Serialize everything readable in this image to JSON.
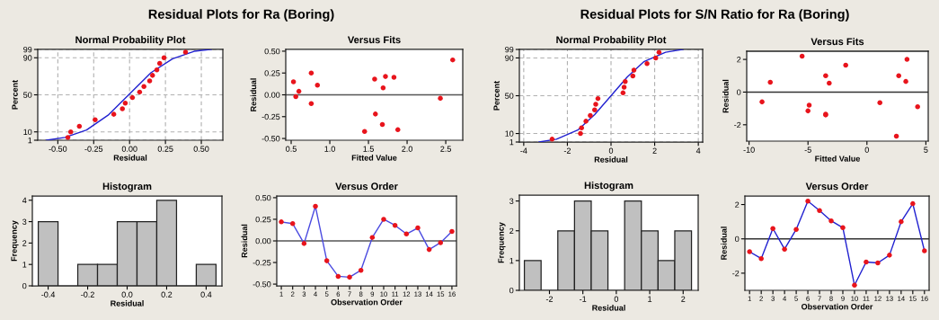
{
  "chart_data": [
    {
      "type": "scatter",
      "title": "Normal Probability Plot",
      "xlabel": "Residual",
      "ylabel": "Percent",
      "annotations": [
        "Residual Plots for Ra (Boring)"
      ],
      "grid": true,
      "marker": "circle",
      "xlim": [
        -0.64,
        0.65
      ],
      "xticks": [
        {
          "value": -0.5,
          "label": "-0.50"
        },
        {
          "value": -0.25,
          "label": "-0.25"
        },
        {
          "value": 0,
          "label": "0.00"
        },
        {
          "value": 0.25,
          "label": "0.25"
        },
        {
          "value": 0.5,
          "label": "0.50"
        }
      ],
      "ylim": [
        1,
        99
      ],
      "yticks": [
        1,
        10,
        50,
        90,
        99
      ],
      "series": [
        {
          "type": "scatter",
          "color": "#e8141c",
          "x": [
            -0.43,
            -0.41,
            -0.35,
            -0.24,
            -0.11,
            -0.05,
            -0.03,
            0.02,
            0.07,
            0.1,
            0.14,
            0.16,
            0.19,
            0.21,
            0.24,
            0.39
          ],
          "values": [
            4,
            10,
            16,
            23,
            29,
            35,
            41,
            47,
            53,
            59,
            65,
            71,
            77,
            84,
            90,
            96
          ]
        },
        {
          "type": "line",
          "color": "#2020d0",
          "marker": "none",
          "x": [
            -0.58,
            -0.45,
            -0.3,
            -0.15,
            0,
            0.15,
            0.3,
            0.45,
            0.57
          ],
          "values": [
            1,
            4,
            12,
            28,
            51,
            74,
            89,
            97,
            99
          ]
        }
      ]
    },
    {
      "type": "scatter",
      "title": "Versus Fits",
      "xlabel": "Fitted Value",
      "ylabel": "Residual",
      "marker": "circle",
      "xlim": [
        0.43,
        2.72
      ],
      "xticks": [
        {
          "value": 0.5,
          "label": "0.5"
        },
        {
          "value": 1.0,
          "label": "1.0"
        },
        {
          "value": 1.5,
          "label": "1.5"
        },
        {
          "value": 2.0,
          "label": "2.0"
        },
        {
          "value": 2.5,
          "label": "2.5"
        }
      ],
      "ylim": [
        -0.52,
        0.52
      ],
      "yticks": [
        {
          "value": -0.5,
          "label": "-0.50"
        },
        {
          "value": -0.25,
          "label": "-0.25"
        },
        {
          "value": 0,
          "label": "0.00"
        },
        {
          "value": 0.25,
          "label": "0.25"
        },
        {
          "value": 0.5,
          "label": "0.50"
        }
      ],
      "ref_lines": [
        {
          "axis": "y",
          "value": 0,
          "color": "#555555"
        }
      ],
      "series": [
        {
          "type": "scatter",
          "color": "#e8141c",
          "x": [
            0.53,
            0.56,
            0.6,
            0.76,
            0.76,
            0.84,
            1.45,
            1.58,
            1.59,
            1.68,
            1.69,
            1.72,
            1.83,
            1.88,
            2.43,
            2.59
          ],
          "values": [
            0.15,
            -0.02,
            0.04,
            0.25,
            -0.1,
            0.11,
            -0.42,
            0.18,
            -0.22,
            -0.34,
            0.08,
            0.21,
            0.2,
            -0.4,
            -0.04,
            0.4
          ]
        }
      ]
    },
    {
      "type": "histogram",
      "title": "Histogram",
      "xlabel": "Residual",
      "ylabel": "Frequency",
      "color": "#c0c0c0",
      "bins": [
        -0.45,
        -0.35,
        -0.25,
        -0.15,
        -0.05,
        0.05,
        0.15,
        0.25,
        0.35,
        0.45
      ],
      "values": [
        3,
        0,
        1,
        1,
        3,
        3,
        4,
        0,
        1
      ],
      "xlim": [
        -0.48,
        0.48
      ],
      "xticks": [
        {
          "value": -0.4,
          "label": "-0.4"
        },
        {
          "value": -0.2,
          "label": "-0.2"
        },
        {
          "value": 0,
          "label": "0.0"
        },
        {
          "value": 0.2,
          "label": "0.2"
        },
        {
          "value": 0.4,
          "label": "0.4"
        }
      ],
      "ylim": [
        0,
        4.2
      ],
      "yticks": [
        0,
        1,
        2,
        3,
        4
      ]
    },
    {
      "type": "line",
      "title": "Versus Order",
      "xlabel": "Observation Order",
      "ylabel": "Residual",
      "categories": [
        "1",
        "2",
        "3",
        "4",
        "5",
        "6",
        "7",
        "8",
        "9",
        "10",
        "11",
        "12",
        "13",
        "14",
        "15",
        "16"
      ],
      "ylim": [
        -0.52,
        0.52
      ],
      "yticks": [
        {
          "value": -0.5,
          "label": "-0.50"
        },
        {
          "value": -0.25,
          "label": "-0.25"
        },
        {
          "value": 0,
          "label": "0.00"
        },
        {
          "value": 0.25,
          "label": "0.25"
        },
        {
          "value": 0.5,
          "label": "0.50"
        }
      ],
      "ref_lines": [
        {
          "axis": "y",
          "value": 0,
          "color": "#555555"
        }
      ],
      "series": [
        {
          "type": "line",
          "color": "#4a4ae0",
          "marker": "none",
          "values": [
            0.22,
            0.2,
            -0.03,
            0.4,
            -0.23,
            -0.41,
            -0.42,
            -0.34,
            0.04,
            0.25,
            0.18,
            0.08,
            0.15,
            -0.1,
            -0.02,
            0.11
          ]
        },
        {
          "type": "scatter",
          "color": "#e8141c",
          "marker": "circle",
          "values": [
            0.22,
            0.2,
            -0.03,
            0.4,
            -0.23,
            -0.41,
            -0.42,
            -0.34,
            0.04,
            0.25,
            0.18,
            0.08,
            0.15,
            -0.1,
            -0.02,
            0.11
          ]
        }
      ]
    },
    {
      "type": "scatter",
      "title": "Normal Probability Plot",
      "xlabel": "Residual",
      "ylabel": "Percent",
      "annotations": [
        "Residual Plots for S/N Ratio for Ra (Boring)"
      ],
      "grid": true,
      "marker": "circle",
      "xlim": [
        -4.2,
        4.2
      ],
      "xticks": [
        -4,
        -2,
        0,
        2,
        4
      ],
      "ylim": [
        1,
        99
      ],
      "yticks": [
        1,
        10,
        50,
        90,
        99
      ],
      "series": [
        {
          "type": "scatter",
          "color": "#e8141c",
          "x": [
            -2.7,
            -1.4,
            -1.35,
            -1.15,
            -0.95,
            -0.75,
            -0.7,
            -0.6,
            0.55,
            0.6,
            0.65,
            1.0,
            1.05,
            1.65,
            2.05,
            2.2
          ],
          "values": [
            4,
            10,
            16,
            23,
            29,
            35,
            41,
            47,
            53,
            59,
            65,
            71,
            77,
            84,
            90,
            96
          ]
        },
        {
          "type": "line",
          "color": "#2020d0",
          "marker": "none",
          "x": [
            -3.3,
            -2.5,
            -1.5,
            -0.75,
            0,
            0.75,
            1.5,
            2.5,
            3.3
          ],
          "values": [
            1,
            4,
            14,
            30,
            50,
            70,
            86,
            96,
            99
          ]
        }
      ]
    },
    {
      "type": "scatter",
      "title": "Versus Fits",
      "xlabel": "Fitted Value",
      "ylabel": "Residual",
      "marker": "circle",
      "xlim": [
        -10.2,
        5.2
      ],
      "xticks": [
        -10,
        -5,
        0,
        5
      ],
      "ylim": [
        -3.0,
        2.5
      ],
      "yticks": [
        -2,
        0,
        2
      ],
      "ref_lines": [
        {
          "axis": "y",
          "value": 0,
          "color": "#333333"
        }
      ],
      "series": [
        {
          "type": "scatter",
          "color": "#e8141c",
          "x": [
            -8.9,
            -8.2,
            -5.5,
            -5.0,
            -4.9,
            -3.5,
            -3.5,
            -3.5,
            -3.2,
            -1.8,
            1.1,
            2.5,
            2.7,
            3.3,
            3.4,
            4.3
          ],
          "values": [
            -0.6,
            0.6,
            2.2,
            -1.15,
            -0.8,
            -1.4,
            -1.35,
            1.0,
            0.55,
            1.65,
            -0.65,
            -2.7,
            1.0,
            0.65,
            2.0,
            -0.9
          ]
        }
      ]
    },
    {
      "type": "histogram",
      "title": "Histogram",
      "xlabel": "Residual",
      "ylabel": "Frequency",
      "color": "#c0c0c0",
      "bins": [
        -2.75,
        -2.25,
        -1.75,
        -1.25,
        -0.75,
        -0.25,
        0.25,
        0.75,
        1.25,
        1.75,
        2.25
      ],
      "values": [
        1,
        0,
        2,
        3,
        2,
        0,
        3,
        2,
        1,
        2
      ],
      "xlim": [
        -2.9,
        2.45
      ],
      "xticks": [
        -2,
        -1,
        0,
        1,
        2
      ],
      "ylim": [
        0,
        3.2
      ],
      "yticks": [
        0,
        1,
        2,
        3
      ]
    },
    {
      "type": "line",
      "title": "Versus Order",
      "xlabel": "Observation Order",
      "ylabel": "Residual",
      "categories": [
        "1",
        "2",
        "3",
        "4",
        "5",
        "6",
        "7",
        "8",
        "9",
        "10",
        "11",
        "12",
        "13",
        "14",
        "15",
        "16"
      ],
      "ylim": [
        -3.0,
        2.5
      ],
      "yticks": [
        -2,
        0,
        2
      ],
      "ref_lines": [
        {
          "axis": "y",
          "value": 0,
          "color": "#333333"
        }
      ],
      "series": [
        {
          "type": "line",
          "color": "#2020d0",
          "marker": "none",
          "values": [
            -0.75,
            -1.15,
            0.6,
            -0.6,
            0.55,
            2.2,
            1.65,
            1.05,
            0.65,
            -2.7,
            -1.35,
            -1.4,
            -0.95,
            1.0,
            2.05,
            -0.7
          ]
        },
        {
          "type": "scatter",
          "color": "#e8141c",
          "marker": "circle",
          "values": [
            -0.75,
            -1.15,
            0.6,
            -0.6,
            0.55,
            2.2,
            1.65,
            1.05,
            0.65,
            -2.7,
            -1.35,
            -1.4,
            -0.95,
            1.0,
            2.05,
            -0.7
          ]
        }
      ]
    }
  ]
}
